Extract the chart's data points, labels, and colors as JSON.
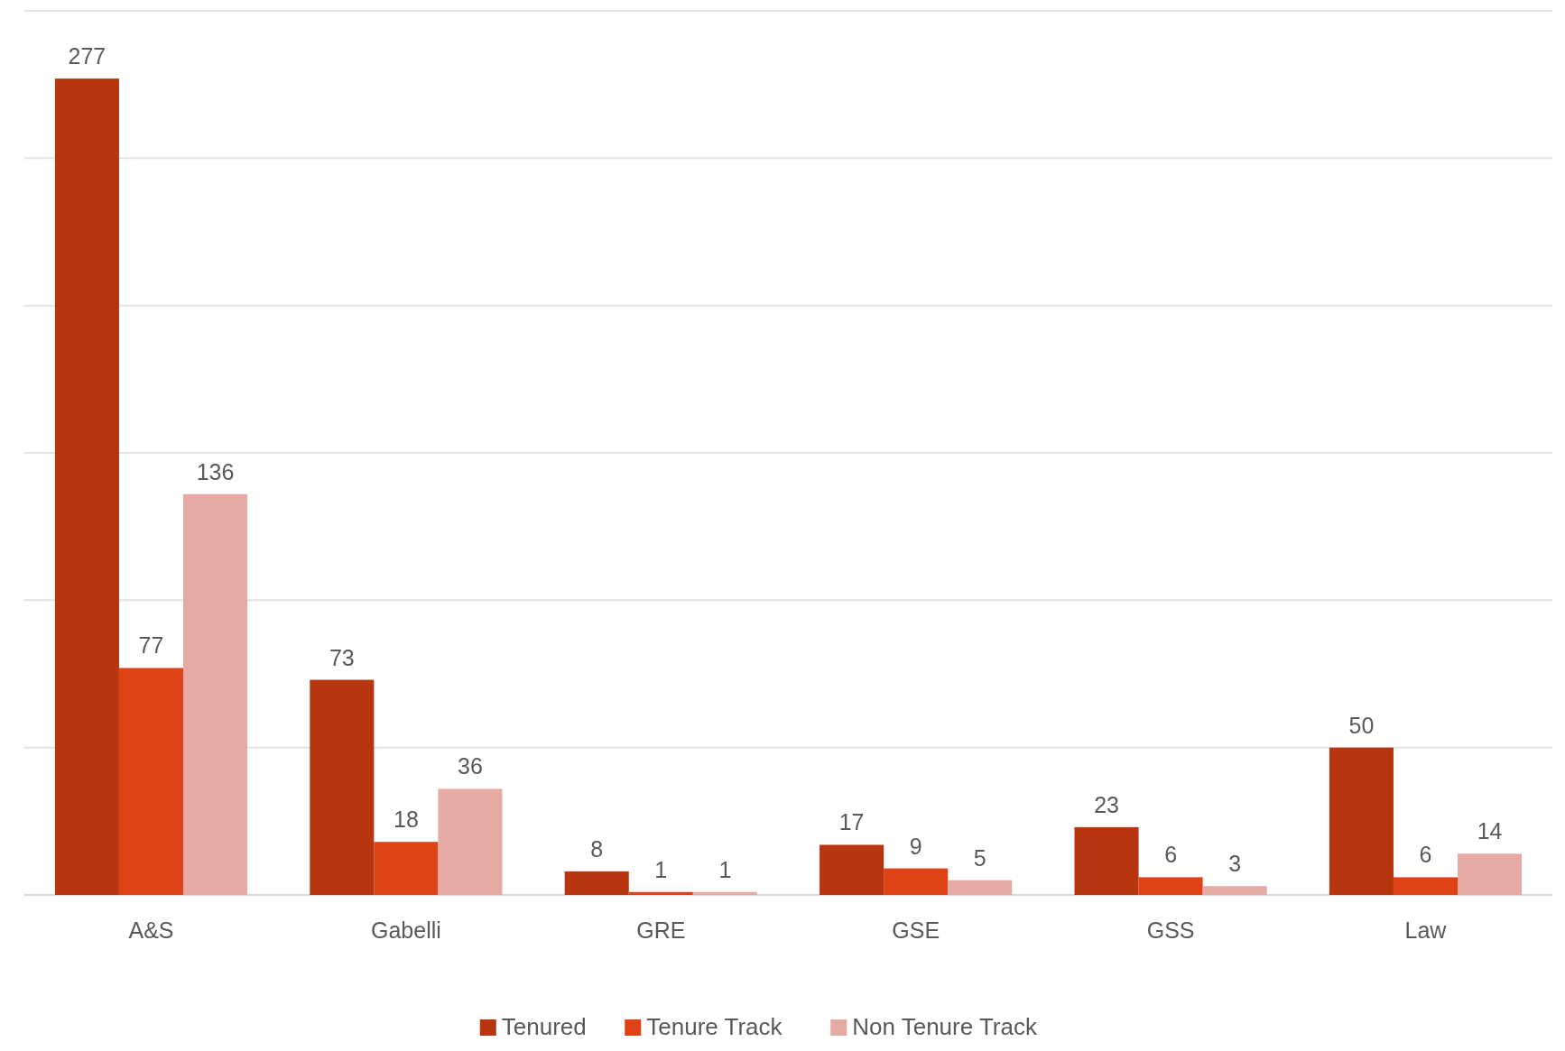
{
  "chart_data": {
    "type": "bar",
    "categories": [
      "A&S",
      "Gabelli",
      "GRE",
      "GSE",
      "GSS",
      "Law"
    ],
    "series": [
      {
        "name": "Tenured",
        "color": "#b8360f",
        "values": [
          277,
          73,
          8,
          17,
          23,
          50
        ]
      },
      {
        "name": "Tenure Track",
        "color": "#de4318",
        "values": [
          77,
          18,
          1,
          9,
          6,
          6
        ]
      },
      {
        "name": "Non Tenure Track",
        "color": "#e5aaa3",
        "values": [
          136,
          36,
          1,
          5,
          3,
          14
        ]
      }
    ],
    "ylim": [
      0,
      300
    ],
    "yticks": [
      {
        "value": 0,
        "label": null
      },
      {
        "value": 50,
        "label": null
      },
      {
        "value": 100,
        "label": null
      },
      {
        "value": 150,
        "label": null
      },
      {
        "value": 200,
        "label": null
      },
      {
        "value": 250,
        "label": null
      },
      {
        "value": 300,
        "label": null
      }
    ],
    "grid": "y",
    "tick_labels": "x",
    "data_labels": true,
    "legend": "bottom"
  }
}
